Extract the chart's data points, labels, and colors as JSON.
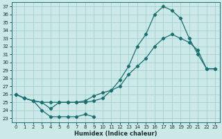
{
  "xlabel": "Humidex (Indice chaleur)",
  "xlim": [
    -0.5,
    23.5
  ],
  "ylim": [
    22.5,
    37.5
  ],
  "yticks": [
    23,
    24,
    25,
    26,
    27,
    28,
    29,
    30,
    31,
    32,
    33,
    34,
    35,
    36,
    37
  ],
  "xticks": [
    0,
    1,
    2,
    3,
    4,
    5,
    6,
    7,
    8,
    9,
    10,
    11,
    12,
    13,
    14,
    15,
    16,
    17,
    18,
    19,
    20,
    21,
    22,
    23
  ],
  "bg_color": "#cce8e8",
  "grid_color": "#99cccc",
  "line_color": "#1a7070",
  "curve1_x": [
    0,
    1,
    2,
    3,
    4,
    5,
    6,
    7,
    8,
    9,
    10,
    11,
    12,
    13,
    14,
    15,
    16,
    17,
    18,
    19,
    20,
    21,
    22,
    23
  ],
  "curve1_y": [
    26.0,
    25.5,
    25.2,
    25.0,
    25.0,
    25.0,
    25.0,
    25.0,
    25.2,
    25.8,
    26.2,
    26.5,
    27.0,
    28.5,
    29.5,
    30.5,
    32.0,
    33.0,
    33.5,
    33.0,
    32.5,
    31.5,
    29.2,
    29.2
  ],
  "curve2_x": [
    0,
    1,
    2,
    3,
    4,
    5,
    6,
    7,
    8,
    9,
    10,
    11,
    12,
    13,
    14,
    15,
    16,
    17,
    18,
    19,
    20,
    21,
    22,
    23
  ],
  "curve2_y": [
    26.0,
    25.5,
    25.2,
    25.0,
    24.2,
    25.0,
    25.0,
    25.0,
    25.0,
    25.2,
    25.5,
    26.5,
    27.8,
    29.5,
    32.0,
    33.5,
    36.0,
    37.0,
    36.5,
    35.5,
    33.0,
    31.0,
    29.2,
    29.2
  ],
  "curve3_x": [
    0,
    1,
    2,
    3,
    4,
    5,
    6,
    7,
    8,
    9
  ],
  "curve3_y": [
    26.0,
    25.5,
    25.2,
    24.0,
    23.2,
    23.2,
    23.2,
    23.2,
    23.5,
    23.2
  ],
  "marker": "D",
  "markersize": 2.2,
  "linewidth": 0.9
}
